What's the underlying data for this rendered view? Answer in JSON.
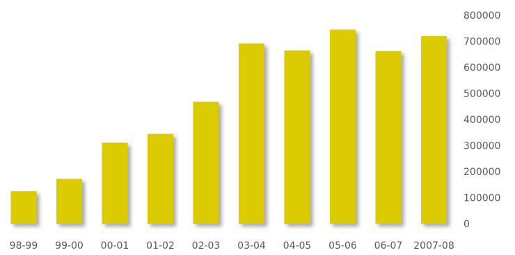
{
  "chart_data": {
    "type": "bar",
    "categories": [
      "98-99",
      "99-00",
      "00-01",
      "01-02",
      "02-03",
      "03-04",
      "04-05",
      "05-06",
      "06-07",
      "2007-08"
    ],
    "values": [
      125000,
      172000,
      311000,
      345000,
      468000,
      692000,
      665000,
      745000,
      663000,
      720000
    ],
    "ylim": [
      0,
      800000
    ],
    "yticks": [
      0,
      100000,
      200000,
      300000,
      400000,
      500000,
      600000,
      700000,
      800000
    ],
    "ytick_labels": [
      "0",
      "100000",
      "200000",
      "300000",
      "400000",
      "500000",
      "600000",
      "700000",
      "800000"
    ],
    "y_axis_position": "right",
    "grid": false,
    "legend": "none",
    "bar_color": "#dccb00",
    "shadow": true
  }
}
